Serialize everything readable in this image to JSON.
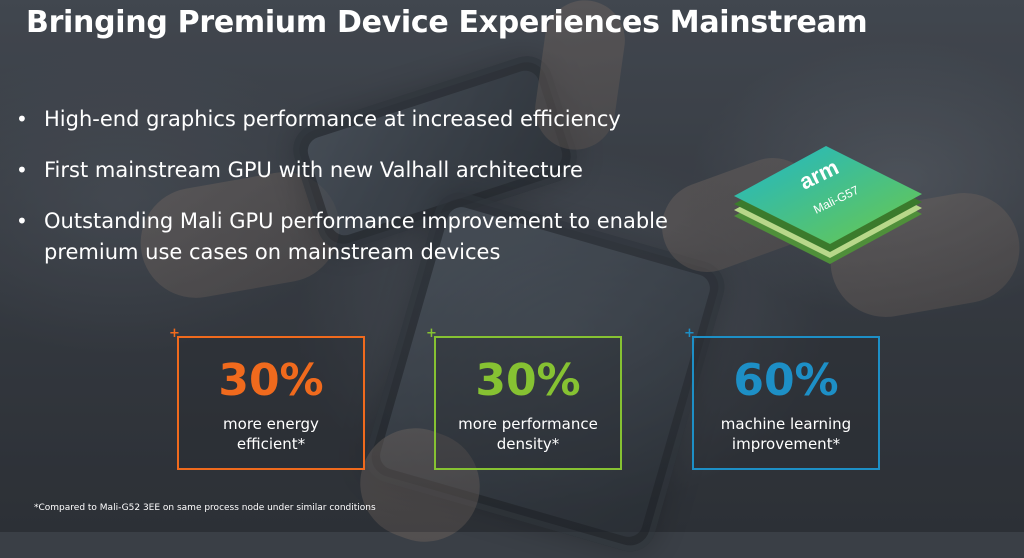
{
  "slide": {
    "title": "Bringing Premium Device Experiences Mainstream",
    "bullets": [
      "High-end graphics performance at increased efficiency",
      "First mainstream GPU with new Valhall architecture",
      "Outstanding Mali GPU performance improvement to enable premium use cases on mainstream devices"
    ],
    "chip": {
      "brand": "arm",
      "model": "Mali-G57"
    },
    "stats": [
      {
        "value": "30%",
        "line1": "more energy",
        "line2": "efficient*",
        "color": "#f06a1d"
      },
      {
        "value": "30%",
        "line1": "more performance",
        "line2": "density*",
        "color": "#86c232"
      },
      {
        "value": "60%",
        "line1": "machine learning",
        "line2": "improvement*",
        "color": "#1d8fc6"
      }
    ],
    "plus_marker": "+",
    "footnote": "*Compared to Mali-G52 3EE on same process node under similar conditions"
  }
}
